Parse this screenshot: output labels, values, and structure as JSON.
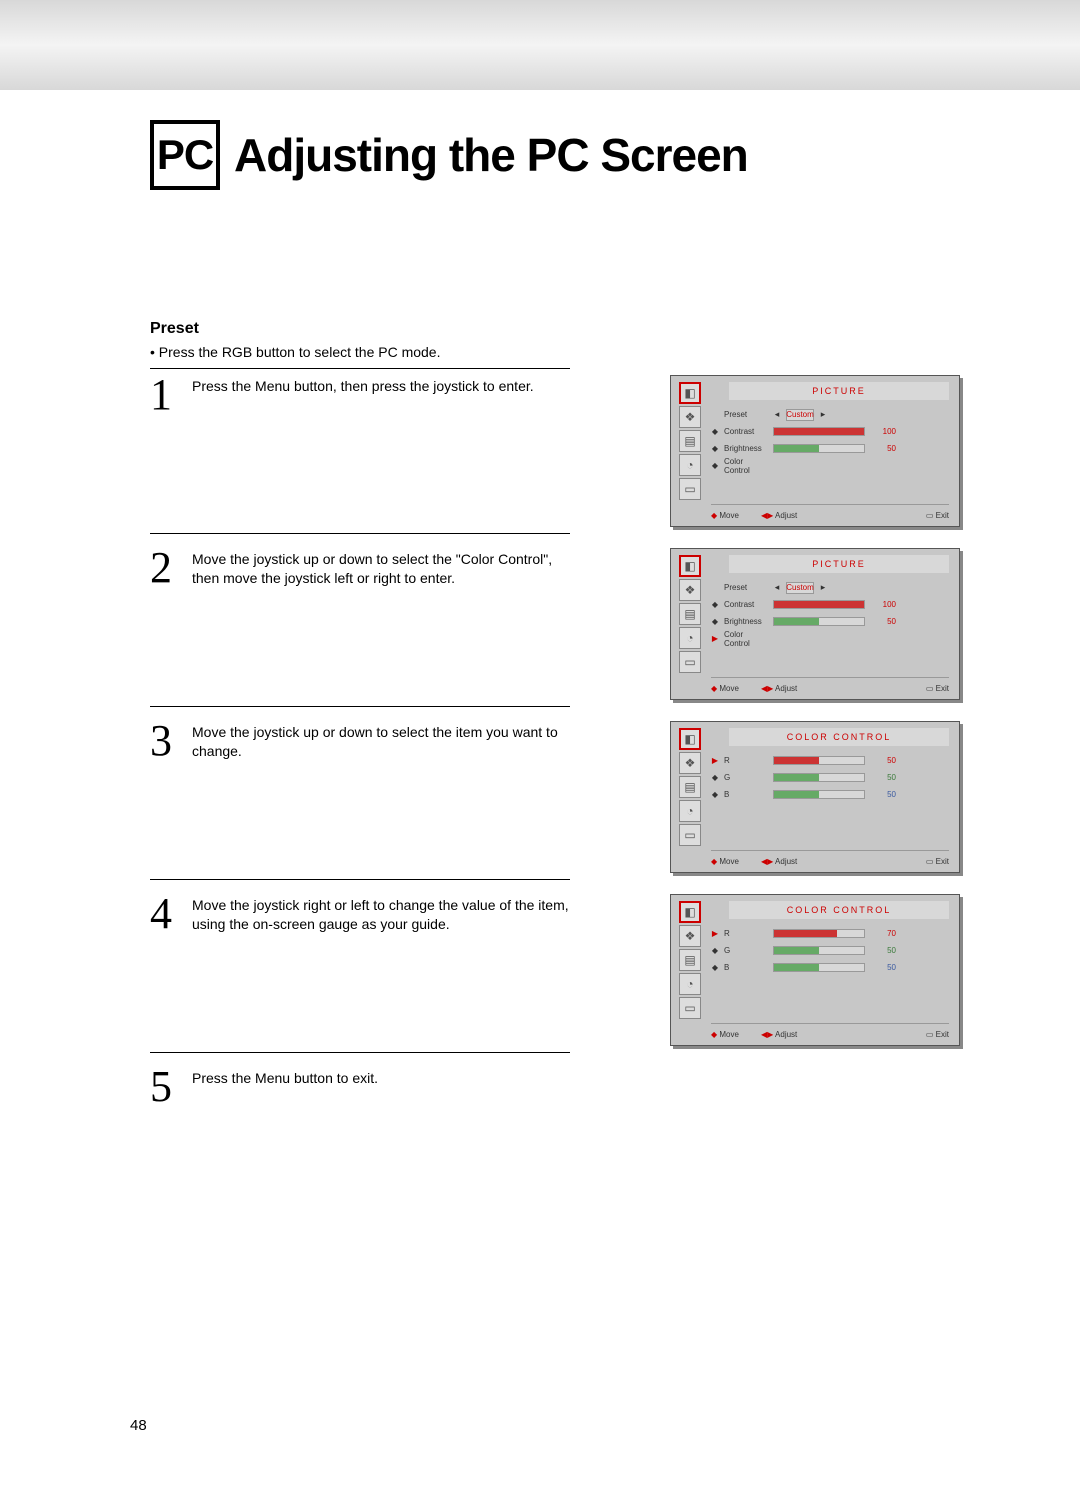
{
  "header": {
    "badge": "PC",
    "title": "Adjusting the PC Screen"
  },
  "section": {
    "heading": "Preset",
    "intro": "•  Press the RGB button to select the PC mode."
  },
  "steps": [
    {
      "num": "1",
      "text": "Press the Menu button, then press the joystick to enter."
    },
    {
      "num": "2",
      "text": "Move the joystick up or down to select the \"Color Control\", then move the joystick left or right to enter."
    },
    {
      "num": "3",
      "text": "Move the joystick up or down to select the item you want to change."
    },
    {
      "num": "4",
      "text": "Move the joystick right or left to change the value of the item, using the on-screen gauge as your guide."
    },
    {
      "num": "5",
      "text": "Press the Menu button to exit."
    }
  ],
  "page_number": "48",
  "osd_common": {
    "footer": {
      "move": "Move",
      "adjust": "Adjust",
      "exit": "Exit"
    },
    "icons": [
      "◧",
      "❖",
      "▤",
      "◔",
      "▭"
    ]
  },
  "osd1": {
    "header_text": "PICTURE",
    "preset_label": "Preset",
    "preset_value": "Custom",
    "rows": [
      {
        "marker": "◆",
        "label": "Contrast",
        "value": 100,
        "pct": 100,
        "color": "red",
        "num_class": ""
      },
      {
        "marker": "◆",
        "label": "Brightness",
        "value": 50,
        "pct": 50,
        "color": "green",
        "num_class": ""
      },
      {
        "marker": "◆",
        "label": "Color Control",
        "value": "",
        "pct": 0,
        "color": "none",
        "num_class": ""
      }
    ]
  },
  "osd2": {
    "header_text": "PICTURE",
    "preset_label": "Preset",
    "preset_value": "Custom",
    "rows": [
      {
        "marker": "◆",
        "label": "Contrast",
        "value": 100,
        "pct": 100,
        "color": "red",
        "num_class": ""
      },
      {
        "marker": "◆",
        "label": "Brightness",
        "value": 50,
        "pct": 50,
        "color": "green",
        "num_class": ""
      },
      {
        "marker": "▶",
        "marker_class": "red",
        "label": "Color Control",
        "value": "",
        "pct": 0,
        "color": "none",
        "num_class": ""
      }
    ]
  },
  "osd3": {
    "header_text": "COLOR CONTROL",
    "rows": [
      {
        "marker": "▶",
        "marker_class": "red",
        "label": "R",
        "value": 50,
        "pct": 50,
        "color": "red",
        "num_class": ""
      },
      {
        "marker": "◆",
        "label": "G",
        "value": 50,
        "pct": 50,
        "color": "green",
        "num_class": "green"
      },
      {
        "marker": "◆",
        "label": "B",
        "value": 50,
        "pct": 50,
        "color": "green",
        "num_class": "blue"
      }
    ]
  },
  "osd4": {
    "header_text": "COLOR CONTROL",
    "rows": [
      {
        "marker": "▶",
        "marker_class": "red",
        "label": "R",
        "value": 70,
        "pct": 70,
        "color": "red",
        "num_class": ""
      },
      {
        "marker": "◆",
        "label": "G",
        "value": 50,
        "pct": 50,
        "color": "green",
        "num_class": "green"
      },
      {
        "marker": "◆",
        "label": "B",
        "value": 50,
        "pct": 50,
        "color": "green",
        "num_class": "blue"
      }
    ]
  }
}
